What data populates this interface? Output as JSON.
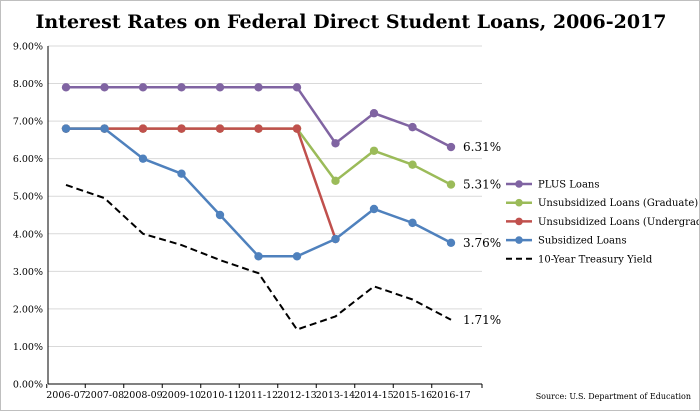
{
  "chart_data": {
    "type": "line",
    "title": "Interest Rates on Federal Direct Student Loans, 2006-2017",
    "source": "Source: U.S. Department of Education",
    "categories": [
      "2006-07",
      "2007-08",
      "2008-09",
      "2009-10",
      "2010-11",
      "2011-12",
      "2012-13",
      "2013-14",
      "2014-15",
      "2015-16",
      "2016-17"
    ],
    "y_ticks": [
      "0.00%",
      "1.00%",
      "2.00%",
      "3.00%",
      "4.00%",
      "5.00%",
      "6.00%",
      "7.00%",
      "8.00%",
      "9.00%"
    ],
    "ylim": [
      0,
      9
    ],
    "grid": "horizontal",
    "legend_position": "right",
    "series": [
      {
        "name": "PLUS Loans",
        "color": "#8064a2",
        "style": "solid",
        "markers": true,
        "values": [
          7.9,
          7.9,
          7.9,
          7.9,
          7.9,
          7.9,
          7.9,
          6.41,
          7.21,
          6.84,
          6.31
        ],
        "end_label": "6.31%"
      },
      {
        "name": "Unsubsidized Loans (Graduate)",
        "color": "#9bbb59",
        "style": "solid",
        "markers": true,
        "values": [
          6.8,
          6.8,
          6.8,
          6.8,
          6.8,
          6.8,
          6.8,
          5.41,
          6.21,
          5.84,
          5.31
        ],
        "end_label": "5.31%"
      },
      {
        "name": "Unsubsidized Loans (Undergrad)",
        "color": "#c0504d",
        "style": "solid",
        "markers": true,
        "values": [
          6.8,
          6.8,
          6.8,
          6.8,
          6.8,
          6.8,
          6.8,
          3.86,
          null,
          null,
          null
        ],
        "end_label": ""
      },
      {
        "name": "Subsidized Loans",
        "color": "#4f81bd",
        "style": "solid",
        "markers": true,
        "values": [
          6.8,
          6.8,
          6.0,
          5.6,
          4.5,
          3.4,
          3.4,
          3.86,
          4.66,
          4.29,
          3.76
        ],
        "end_label": "3.76%"
      },
      {
        "name": "10-Year Treasury Yield",
        "color": "#000000",
        "style": "dashed",
        "markers": false,
        "values": [
          5.3,
          4.95,
          4.0,
          3.7,
          3.3,
          2.95,
          1.45,
          1.8,
          2.6,
          2.25,
          1.71
        ],
        "end_label": "1.71%"
      }
    ]
  }
}
